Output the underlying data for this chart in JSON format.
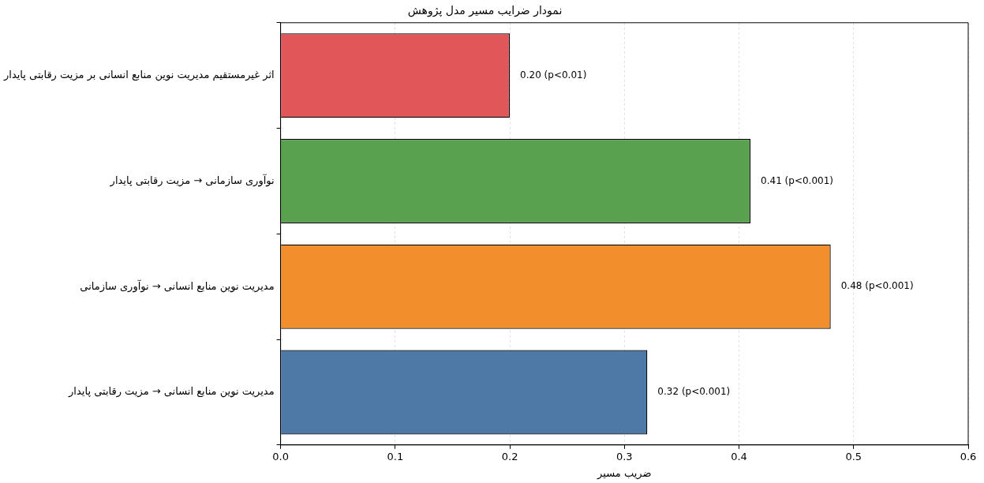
{
  "chart_data": {
    "type": "bar",
    "orientation": "horizontal",
    "title": "نمودار ضرایب مسیر مدل پژوهش",
    "xlabel": "ضریب مسیر",
    "categories": [
      "اثر غیرمستقیم مدیریت نوین منابع انسانی بر مزیت رقابتی پایدار",
      "نوآوری سازمانی → مزیت رقابتی پایدار",
      "مدیریت نوین منابع انسانی → نوآوری سازمانی",
      "مدیریت نوین منابع انسانی → مزیت رقابتی پایدار"
    ],
    "values": [
      0.2,
      0.41,
      0.48,
      0.32
    ],
    "colors": [
      "#e15759",
      "#59a14f",
      "#f28e2b",
      "#4e79a7"
    ],
    "value_labels": [
      "0.20 (p<0.01)",
      "0.41 (p<0.001)",
      "0.48 (p<0.001)",
      "0.32 (p<0.001)"
    ],
    "xlim": [
      0,
      0.6
    ],
    "xticks": [
      {
        "value": 0,
        "label": "0.0"
      },
      0.1,
      0.2,
      0.3,
      0.4,
      0.5,
      0.6
    ],
    "grid": "x"
  }
}
